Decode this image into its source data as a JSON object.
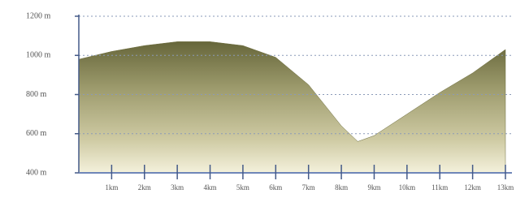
{
  "chart_data": {
    "type": "area",
    "x": [
      0,
      1,
      2,
      3,
      4,
      5,
      6,
      7,
      8,
      8.5,
      9,
      10,
      11,
      12,
      13
    ],
    "values": [
      980,
      1020,
      1050,
      1070,
      1070,
      1050,
      990,
      850,
      640,
      560,
      590,
      700,
      810,
      910,
      1030
    ],
    "color": "#6b6b3c",
    "xlim": [
      0,
      13
    ],
    "xticks": [
      {
        "value": 1,
        "label": "1km"
      },
      {
        "value": 2,
        "label": "2km"
      },
      {
        "value": 3,
        "label": "3km"
      },
      {
        "value": 4,
        "label": "4km"
      },
      {
        "value": 5,
        "label": "5km"
      },
      {
        "value": 6,
        "label": "6km"
      },
      {
        "value": 7,
        "label": "7km"
      },
      {
        "value": 8,
        "label": "8km"
      },
      {
        "value": 9,
        "label": "9km"
      },
      {
        "value": 10,
        "label": "10km"
      },
      {
        "value": 11,
        "label": "11km"
      },
      {
        "value": 12,
        "label": "12km"
      },
      {
        "value": 13,
        "label": "13km"
      }
    ],
    "ylim": [
      400,
      1200
    ],
    "yticks": [
      {
        "value": 400,
        "label": "400 m"
      },
      {
        "value": 600,
        "label": "600 m"
      },
      {
        "value": 800,
        "label": "800 m"
      },
      {
        "value": 1000,
        "label": "1000 m"
      },
      {
        "value": 1200,
        "label": "1200 m"
      }
    ],
    "grid": true
  }
}
